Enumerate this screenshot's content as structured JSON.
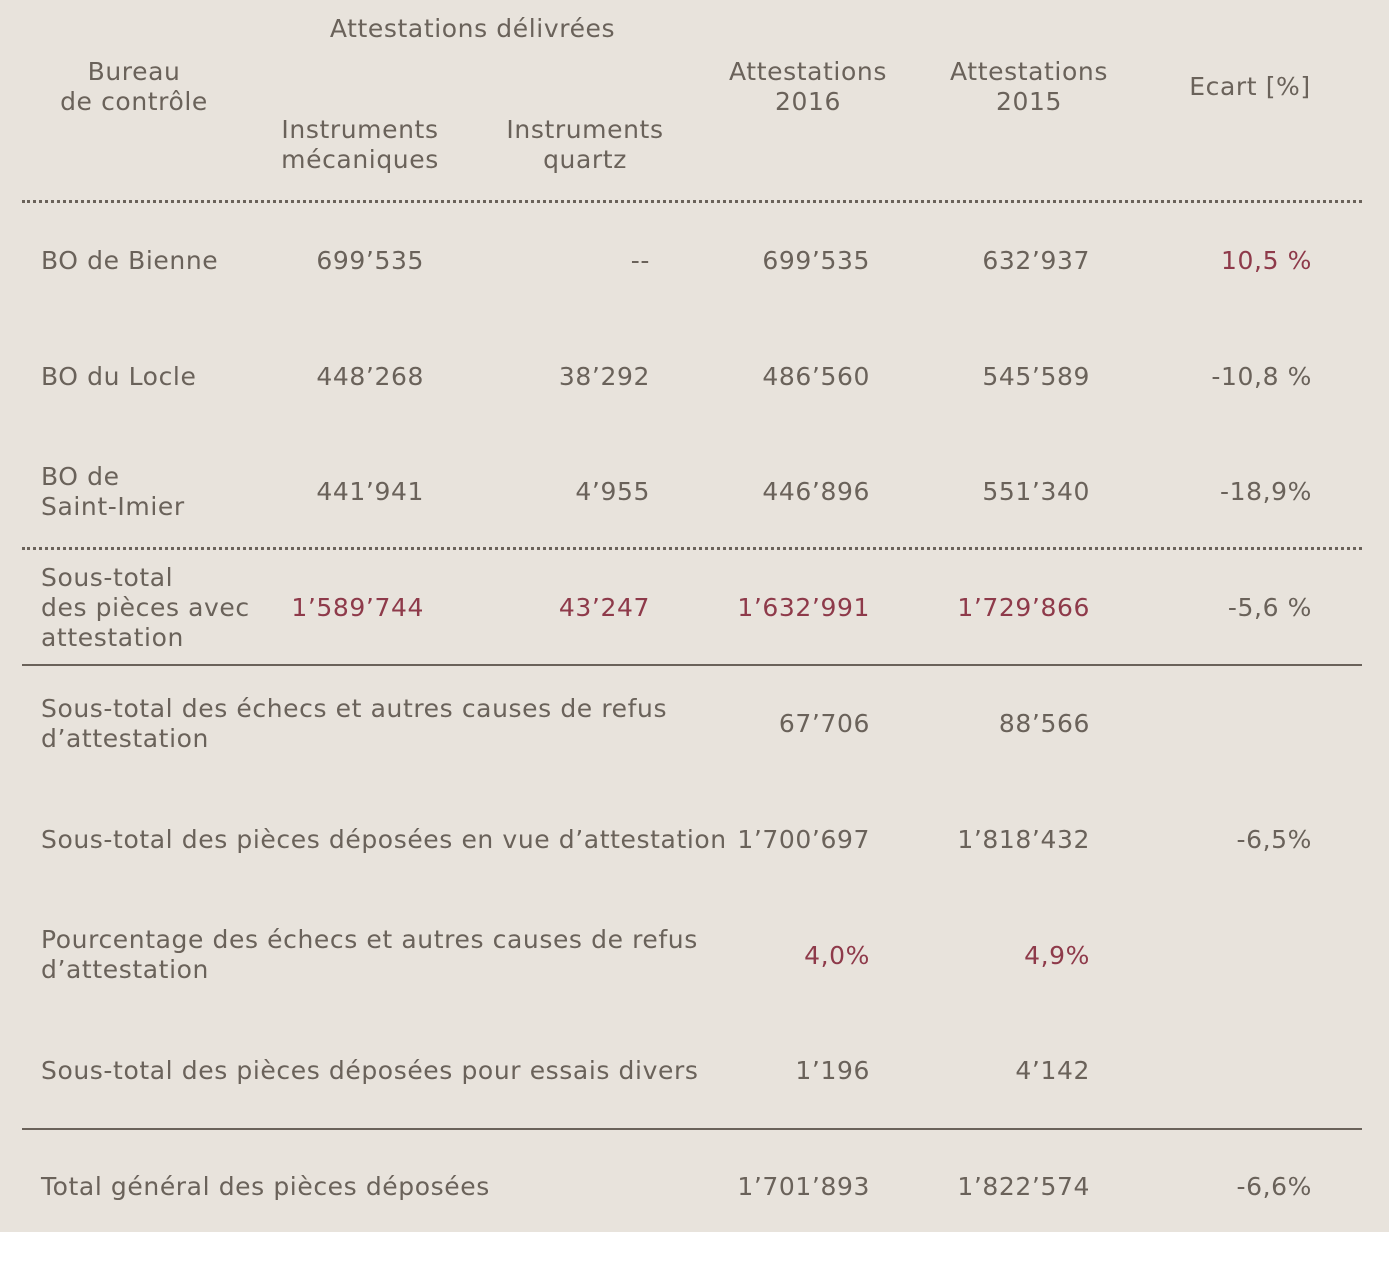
{
  "header": {
    "bureau": [
      "Bureau",
      "de contrôle"
    ],
    "group_label": "Attestations délivrées",
    "mecaniques": [
      "Instruments",
      "mécaniques"
    ],
    "quartz": [
      "Instruments",
      "quartz"
    ],
    "att2016": [
      "Attestations",
      "2016"
    ],
    "att2015": [
      "Attestations",
      "2015"
    ],
    "ecart": "Ecart [%]"
  },
  "rows": [
    {
      "label": [
        "BO de Bienne"
      ],
      "mecaniques": "699’535",
      "quartz": "--",
      "att2016": "699’535",
      "att2015": "632’937",
      "ecart": "10,5 %"
    },
    {
      "label": [
        "BO du Locle"
      ],
      "mecaniques": "448’268",
      "quartz": "38’292",
      "att2016": "486’560",
      "att2015": "545’589",
      "ecart": "-10,8 %"
    },
    {
      "label": [
        "BO de",
        "Saint-Imier"
      ],
      "mecaniques": "441’941",
      "quartz": "4’955",
      "att2016": "446’896",
      "att2015": "551’340",
      "ecart": "-18,9%"
    }
  ],
  "subtotal": {
    "label": [
      "Sous-total",
      "des pièces avec",
      "attestation"
    ],
    "mecaniques": "1’589’744",
    "quartz": "43’247",
    "att2016": "1’632’991",
    "att2015": "1’729’866",
    "ecart": "-5,6 %"
  },
  "summary": [
    {
      "label": [
        "Sous-total des échecs et autres causes de refus",
        "d’attestation"
      ],
      "att2016": "67’706",
      "att2015": "88’566",
      "ecart": ""
    },
    {
      "label": [
        "Sous-total des pièces déposées en vue d’attestation"
      ],
      "att2016": "1’700’697",
      "att2015": "1’818’432",
      "ecart": "-6,5%"
    },
    {
      "label": [
        "Pourcentage des échecs et autres causes de refus",
        "d’attestation"
      ],
      "att2016": "4,0%",
      "att2015": "4,9%",
      "ecart": ""
    },
    {
      "label": [
        "Sous-total des pièces déposées pour essais divers"
      ],
      "att2016": "1’196",
      "att2015": "4’142",
      "ecart": ""
    }
  ],
  "total": {
    "label": "Total général des pièces déposées",
    "att2016": "1’701’893",
    "att2015": "1’822’574",
    "ecart": "-6,6%"
  },
  "colors": {
    "background": "#e8e3dc",
    "text": "#6a625a",
    "accent": "#8e3a4a"
  }
}
